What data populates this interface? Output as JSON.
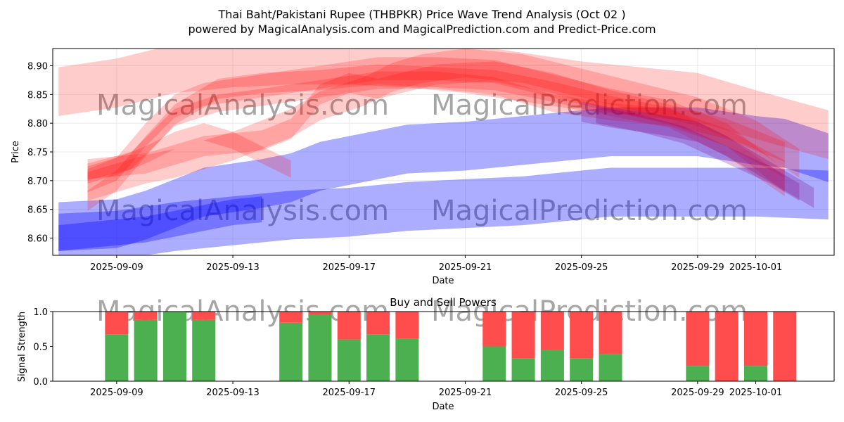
{
  "title_line1": "Thai Baht/Pakistani Rupee (THBPKR) Price Wave Trend Analysis (Oct 02 )",
  "title_line2": "powered by MagicalAnalysis.com and MagicalPrediction.com and Predict-Price.com",
  "watermarks": [
    "MagicalAnalysis.com",
    "MagicalPrediction.com"
  ],
  "colors": {
    "red_band": "#ff0000",
    "blue_band": "#0000ff",
    "purple_band": "#800080",
    "buy": "#4caf50",
    "sell": "#ff4c4c"
  },
  "chart_data": [
    {
      "type": "area",
      "title": "",
      "xlabel": "Date",
      "ylabel": "Price",
      "ylim": [
        8.57,
        8.93
      ],
      "yticks": [
        "8.60",
        "8.65",
        "8.70",
        "8.75",
        "8.80",
        "8.85",
        "8.90"
      ],
      "xticks": [
        "2025-09-09",
        "2025-09-13",
        "2025-09-17",
        "2025-09-21",
        "2025-09-25",
        "2025-09-29",
        "2025-10-01"
      ],
      "xticks_day": [
        9,
        13,
        17,
        21,
        25,
        29,
        31
      ],
      "xlim_day": [
        6.8,
        33.7
      ],
      "red_bands": [
        {
          "x": [
            7.0,
            9.0,
            11.0,
            13.0,
            15.0,
            17.0,
            19.0,
            21.0,
            23.0,
            25.0,
            27.0,
            29.0,
            31.0,
            33.5
          ],
          "center": [
            8.855,
            8.87,
            8.895,
            8.905,
            8.91,
            8.91,
            8.905,
            8.895,
            8.88,
            8.865,
            8.855,
            8.845,
            8.815,
            8.78
          ],
          "width": 0.085
        },
        {
          "x": [
            8.0,
            9.5,
            11.0,
            12.5,
            14.0,
            16.0,
            18.0,
            20.0,
            22.0,
            24.0,
            26.0,
            28.0,
            30.0,
            32.0
          ],
          "center": [
            8.715,
            8.735,
            8.81,
            8.835,
            8.845,
            8.86,
            8.875,
            8.875,
            8.865,
            8.835,
            8.82,
            8.81,
            8.775,
            8.72
          ],
          "width": 0.03
        },
        {
          "x": [
            8.0,
            9.0,
            10.0,
            11.0,
            12.0,
            14.0,
            16.0,
            18.0,
            20.0,
            22.0,
            24.0,
            26.0,
            28.0,
            30.0,
            32.0
          ],
          "center": [
            8.7,
            8.72,
            8.78,
            8.83,
            8.85,
            8.865,
            8.88,
            8.895,
            8.895,
            8.89,
            8.865,
            8.84,
            8.82,
            8.78,
            8.7
          ],
          "width": 0.04
        },
        {
          "x": [
            8.0,
            9.0,
            10.0,
            11.0,
            12.5,
            14.0,
            16.0,
            18.0,
            20.0,
            22.0,
            24.0,
            26.0,
            28.0,
            30.0,
            32.0
          ],
          "center": [
            8.665,
            8.7,
            8.76,
            8.815,
            8.86,
            8.87,
            8.875,
            8.885,
            8.88,
            8.875,
            8.855,
            8.83,
            8.81,
            8.76,
            8.69
          ],
          "width": 0.035
        },
        {
          "x": [
            8.0,
            9.0,
            10.0,
            11.0,
            12.0,
            13.0,
            14.0,
            15.0
          ],
          "center": [
            8.71,
            8.725,
            8.745,
            8.77,
            8.785,
            8.77,
            8.745,
            8.72
          ],
          "width": 0.03
        },
        {
          "x": [
            8.0,
            10.0,
            12.0,
            14.0,
            15.0,
            16.0,
            17.0,
            18.0,
            20.0,
            22.0,
            24.0,
            26.0,
            28.0,
            30.0,
            32.0
          ],
          "center": [
            8.72,
            8.73,
            8.76,
            8.77,
            8.79,
            8.85,
            8.87,
            8.86,
            8.885,
            8.89,
            8.87,
            8.84,
            8.815,
            8.79,
            8.75
          ],
          "width": 0.035
        },
        {
          "x": [
            8.0,
            9.0,
            10.0,
            11.0,
            12.0,
            13.0,
            14.0,
            15.0,
            16.0,
            17.5,
            18.5,
            19.5,
            21.0,
            23.0,
            25.0,
            27.0,
            29.0,
            31.0,
            32.5
          ],
          "center": [
            8.69,
            8.705,
            8.72,
            8.73,
            8.745,
            8.76,
            8.78,
            8.8,
            8.83,
            8.855,
            8.88,
            8.895,
            8.905,
            8.895,
            8.87,
            8.845,
            8.82,
            8.78,
            8.73
          ],
          "width": 0.05
        }
      ],
      "blue_bands": [
        {
          "x": [
            7.0,
            9.0,
            10.0,
            12.0,
            14.0,
            15.0,
            16.0,
            18.0,
            19.0,
            21.0,
            23.0,
            25.0,
            26.0,
            29.0,
            31.0,
            32.0,
            33.5
          ],
          "center": [
            8.62,
            8.625,
            8.64,
            8.68,
            8.695,
            8.705,
            8.725,
            8.745,
            8.755,
            8.76,
            8.77,
            8.78,
            8.785,
            8.785,
            8.77,
            8.765,
            8.74
          ],
          "width": 0.085
        },
        {
          "x": [
            7.0,
            9.0,
            11.0,
            13.0,
            15.0,
            17.0,
            19.0,
            21.0,
            23.0,
            25.0,
            26.0,
            29.0,
            31.0,
            33.5
          ],
          "center": [
            8.6,
            8.605,
            8.62,
            8.63,
            8.64,
            8.645,
            8.655,
            8.66,
            8.665,
            8.675,
            8.68,
            8.68,
            8.68,
            8.675
          ],
          "width": 0.085
        },
        {
          "x": [
            7.0,
            8.0,
            9.0,
            10.0,
            11.0,
            12.0,
            13.0,
            14.0
          ],
          "center": [
            8.6,
            8.605,
            8.61,
            8.615,
            8.625,
            8.635,
            8.645,
            8.65
          ],
          "width": 0.045
        }
      ],
      "purple_bands": [
        {
          "x": [
            25.0,
            26.0,
            28.0,
            29.0,
            30.0,
            31.0,
            32.0,
            33.0
          ],
          "center": [
            8.82,
            8.81,
            8.795,
            8.785,
            8.76,
            8.73,
            8.7,
            8.67
          ],
          "width": 0.035
        },
        {
          "x": [
            25.5,
            27.0,
            28.5,
            30.0,
            31.5,
            32.5
          ],
          "center": [
            8.815,
            8.8,
            8.78,
            8.745,
            8.71,
            8.68
          ],
          "width": 0.03
        }
      ]
    },
    {
      "type": "bar",
      "title": "Buy and Sell Powers",
      "xlabel": "Date",
      "ylabel": "Signal Strength",
      "ylim": [
        0,
        1.0
      ],
      "yticks": [
        "0.0",
        "0.5",
        "1.0"
      ],
      "xticks": [
        "2025-09-09",
        "2025-09-13",
        "2025-09-17",
        "2025-09-21",
        "2025-09-25",
        "2025-09-29",
        "2025-10-01"
      ],
      "xticks_day": [
        9,
        13,
        17,
        21,
        25,
        29,
        31
      ],
      "xlim_day": [
        6.8,
        33.7
      ],
      "series": [
        {
          "name": "Buy",
          "values": [
            0.67,
            0.88,
            1.0,
            0.88,
            0.84,
            0.95,
            0.6,
            0.67,
            0.61,
            0.5,
            0.33,
            0.45,
            0.33,
            0.39,
            0.22,
            0.0,
            0.22,
            0.0
          ]
        },
        {
          "name": "Sell",
          "values": [
            0.33,
            0.12,
            0.0,
            0.12,
            0.16,
            0.05,
            0.4,
            0.33,
            0.39,
            0.5,
            0.67,
            0.55,
            0.67,
            0.61,
            0.78,
            1.0,
            0.78,
            1.0
          ]
        }
      ],
      "x_day": [
        9,
        10,
        11,
        12,
        15,
        16,
        17,
        18,
        19,
        22,
        23,
        24,
        25,
        26,
        29,
        30,
        31,
        32
      ]
    }
  ]
}
